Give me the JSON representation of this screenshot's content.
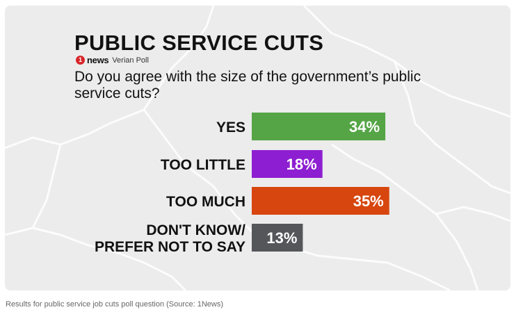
{
  "title": "PUBLIC SERVICE CUTS",
  "brand": {
    "logo_glyph": "1",
    "name": "news",
    "subtitle": "Verian Poll"
  },
  "question": "Do you agree with the size of the government’s public service cuts?",
  "caption": "Results for public service job cuts poll question (Source: 1News)",
  "colors": {
    "yes": "#55a546",
    "too_little": "#8e1ed2",
    "too_much": "#d7460e",
    "dont_know": "#55565a",
    "card_bg": "#ececec",
    "map_lines": "#ffffff"
  },
  "chart_data": {
    "type": "bar",
    "orientation": "horizontal",
    "categories": [
      [
        "YES"
      ],
      [
        "TOO LITTLE"
      ],
      [
        "TOO MUCH"
      ],
      [
        "DON'T KNOW/",
        "PREFER NOT TO SAY"
      ]
    ],
    "values": [
      34,
      18,
      35,
      13
    ],
    "value_labels": [
      "34%",
      "18%",
      "35%",
      "13%"
    ],
    "colors": [
      "#55a546",
      "#8e1ed2",
      "#d7460e",
      "#55565a"
    ],
    "unit": "%",
    "xlim": [
      0,
      60
    ],
    "grid": false,
    "legend": "none"
  }
}
